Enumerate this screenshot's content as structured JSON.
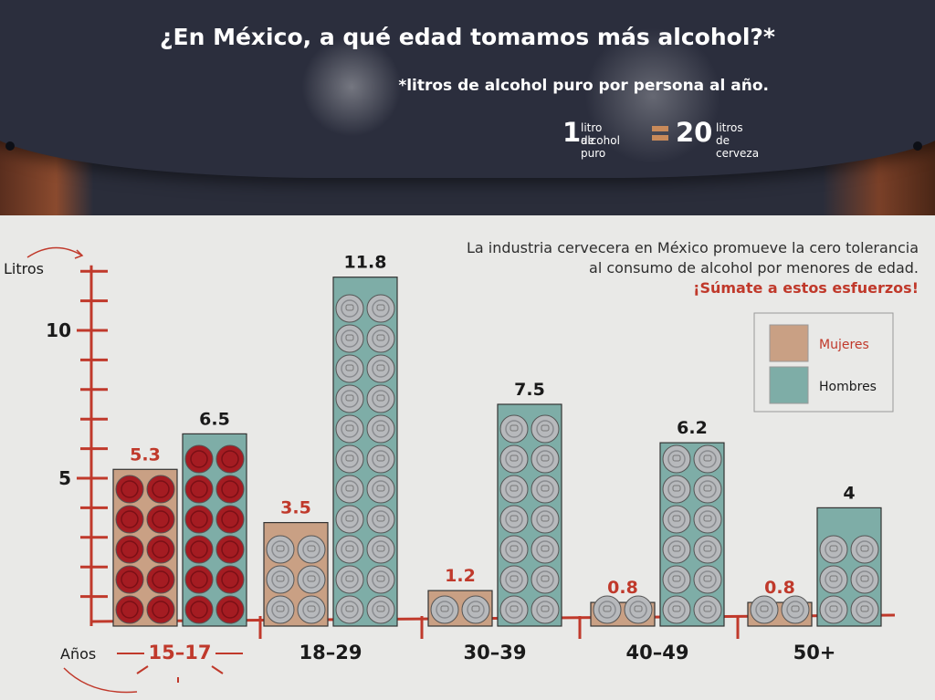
{
  "header": {
    "title": "¿En México, a qué edad tomamos más alcohol?*",
    "subtitle": "*litros de alcohol puro por persona al año.",
    "equivalence": {
      "left_number": "1",
      "left_text_line1": "litro de",
      "left_text_line2": "alcohol puro",
      "right_number": "20",
      "right_text_line1": "litros",
      "right_text_line2": "de cerveza"
    }
  },
  "note": {
    "line1": "La industria cervecera en México promueve la cero tolerancia",
    "line2": "al consumo de alcohol por menores de edad.",
    "cta": "¡Súmate a estos esfuerzos!"
  },
  "colors": {
    "mujeres": "#c9a084",
    "hombres": "#7eada7",
    "accent_red": "#c0392b",
    "can_red": "#a51c22",
    "can_silver": "#b7b9bc"
  },
  "chart_data": {
    "type": "bar",
    "ylabel": "Litros",
    "xlabel": "Años",
    "y_ticks": [
      5,
      10
    ],
    "ylim": [
      0,
      12
    ],
    "categories": [
      "15–17",
      "18–29",
      "30–39",
      "40–49",
      "50+"
    ],
    "series": [
      {
        "name": "Mujeres",
        "values": [
          5.3,
          3.5,
          1.2,
          0.8,
          0.8
        ],
        "labels": [
          "5.3",
          "3.5",
          "1.2",
          "0.8",
          "0.8"
        ]
      },
      {
        "name": "Hombres",
        "values": [
          6.5,
          11.8,
          7.5,
          6.2,
          4
        ],
        "labels": [
          "6.5",
          "11.8",
          "7.5",
          "6.2",
          "4"
        ]
      }
    ],
    "highlight_category": "15–17",
    "legend": [
      "Mujeres",
      "Hombres"
    ],
    "legend_position": "right"
  }
}
